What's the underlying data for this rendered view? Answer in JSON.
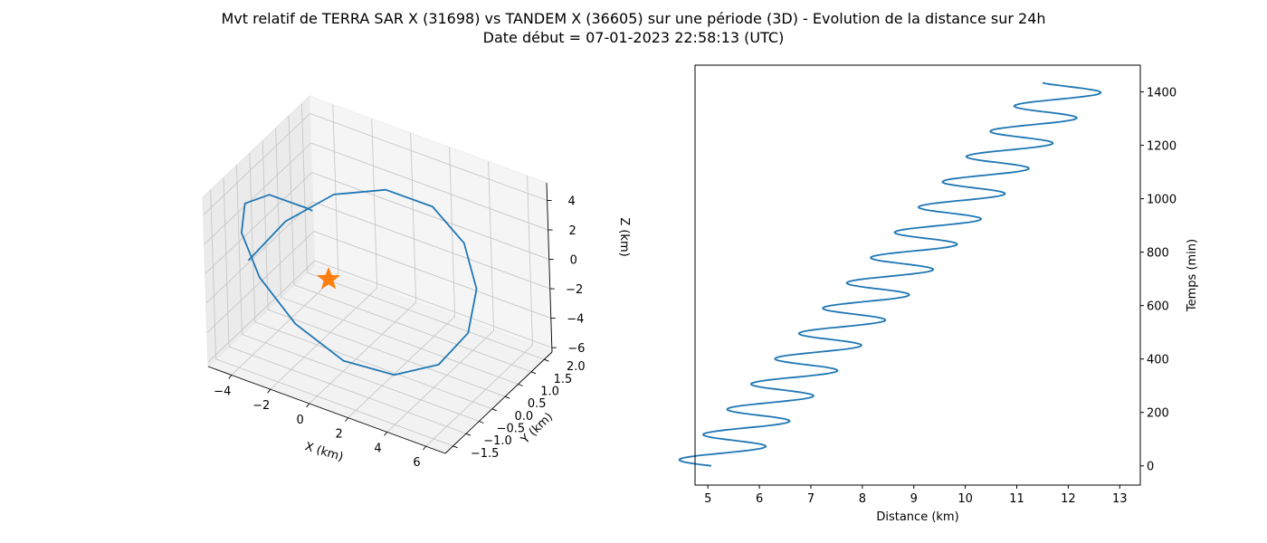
{
  "title": {
    "line1": "Mvt relatif de TERRA SAR X (31698) vs TANDEM X (36605) sur une période (3D) - Evolution de la distance sur 24h",
    "line2": "Date début = 07-01-2023 22:58:13 (UTC)"
  },
  "colors": {
    "series": "#1f77b4",
    "marker": "#ff7f0e",
    "pane": "#f2f2f2",
    "grid": "#c8c8c8"
  },
  "chart_data": [
    {
      "type": "line3d",
      "xlabel": "X (km)",
      "ylabel": "Y (km)",
      "zlabel": "Z (km)",
      "xticks": [
        -4,
        -2,
        0,
        2,
        4,
        6
      ],
      "yticks": [
        -1.5,
        -1.0,
        -0.5,
        0.0,
        0.5,
        1.0,
        1.5,
        2.0
      ],
      "zticks": [
        -6,
        -4,
        -2,
        0,
        2,
        4
      ],
      "xtick_labels": [
        "−4",
        "−2",
        "0",
        "2",
        "4",
        "6"
      ],
      "ytick_labels": [
        "−1.5",
        "−1.0",
        "−0.5",
        "0.0",
        "0.5",
        "1.0",
        "1.5",
        "2.0"
      ],
      "ztick_labels": [
        "−6",
        "−4",
        "−2",
        "0",
        "2",
        "4"
      ],
      "xlim": [
        -5.2,
        7.0
      ],
      "ylim": [
        -1.8,
        2.3
      ],
      "zlim": [
        -6.3,
        5.2
      ],
      "grid": true,
      "series": [
        {
          "x": [
            -4.56,
            -3.58,
            -2.0,
            0.0,
            2.0,
            3.58,
            4.56,
            4.76,
            4.15,
            2.84,
            1.05,
            -0.95,
            -2.74,
            -4.05,
            -4.65,
            -4.39,
            -3.38,
            -3.24
          ],
          "y": [
            -0.63,
            0.1,
            0.8,
            1.31,
            1.6,
            1.6,
            1.31,
            0.8,
            0.1,
            -0.63,
            -1.22,
            -1.54,
            -1.54,
            -1.22,
            -0.63,
            0.1,
            0.8,
            0.87
          ],
          "z": [
            -0.74,
            1.16,
            2.57,
            3.0,
            2.33,
            0.62,
            -1.53,
            -3.56,
            -4.84,
            -4.94,
            -3.86,
            -1.78,
            0.52,
            2.37,
            3.08,
            2.57,
            0.95,
            0.74
          ]
        }
      ],
      "marker": {
        "type": "star",
        "x": -1.3,
        "y": 0.0,
        "z": -1.5
      }
    },
    {
      "type": "line",
      "xlabel": "Distance (km)",
      "ylabel": "Temps (min)",
      "xticks": [
        5,
        6,
        7,
        8,
        9,
        10,
        11,
        12,
        13
      ],
      "yticks": [
        0,
        200,
        400,
        600,
        800,
        1000,
        1200,
        1400
      ],
      "xtick_labels": [
        "5",
        "6",
        "7",
        "8",
        "9",
        "10",
        "11",
        "12",
        "13"
      ],
      "ytick_labels": [
        "0",
        "200",
        "400",
        "600",
        "800",
        "1000",
        "1200",
        "1400"
      ],
      "xlim": [
        4.75,
        13.4
      ],
      "ylim": [
        -72,
        1500
      ],
      "grid": false,
      "yaxis_side": "right",
      "series": [
        {
          "trend": {
            "x0": 5.05,
            "x1": 12.1,
            "y0": 0,
            "y1": 1435
          },
          "oscillation": {
            "amplitude_km": 0.72,
            "period_min": 94.6,
            "phase_rad": 3.12
          }
        }
      ]
    }
  ]
}
